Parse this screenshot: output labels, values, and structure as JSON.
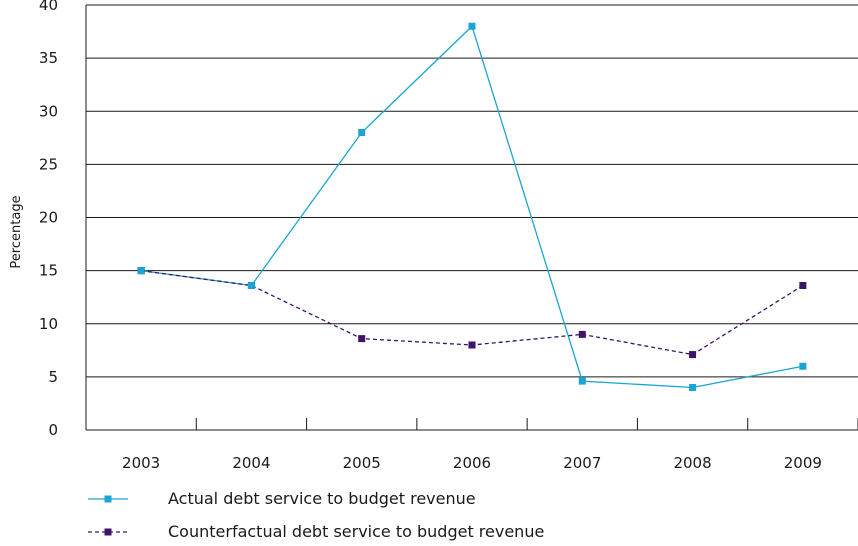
{
  "chart_data": {
    "type": "line",
    "xlabel": "",
    "ylabel": "Percentage",
    "ylim": [
      0,
      40
    ],
    "yticks": [
      0,
      5,
      10,
      15,
      20,
      25,
      30,
      35,
      40
    ],
    "ytick_labels": [
      "0",
      "5",
      "10",
      "15",
      "20",
      "25",
      "30",
      "35",
      "40"
    ],
    "categories": [
      "2003",
      "2004",
      "2005",
      "2006",
      "2007",
      "2008",
      "2009"
    ],
    "grid": "horizontal",
    "legend_position": "bottom-left",
    "series": [
      {
        "name": "Actual debt service to budget revenue",
        "color": "#1aa5d2",
        "line_style": "solid",
        "values": [
          15.0,
          13.6,
          28.0,
          38.0,
          4.6,
          4.0,
          6.0
        ]
      },
      {
        "name": "Counterfactual debt service to budget revenue",
        "color": "#3d1466",
        "line_style": "dashed",
        "values": [
          15.0,
          13.6,
          8.6,
          8.0,
          9.0,
          7.1,
          13.6
        ]
      }
    ]
  }
}
